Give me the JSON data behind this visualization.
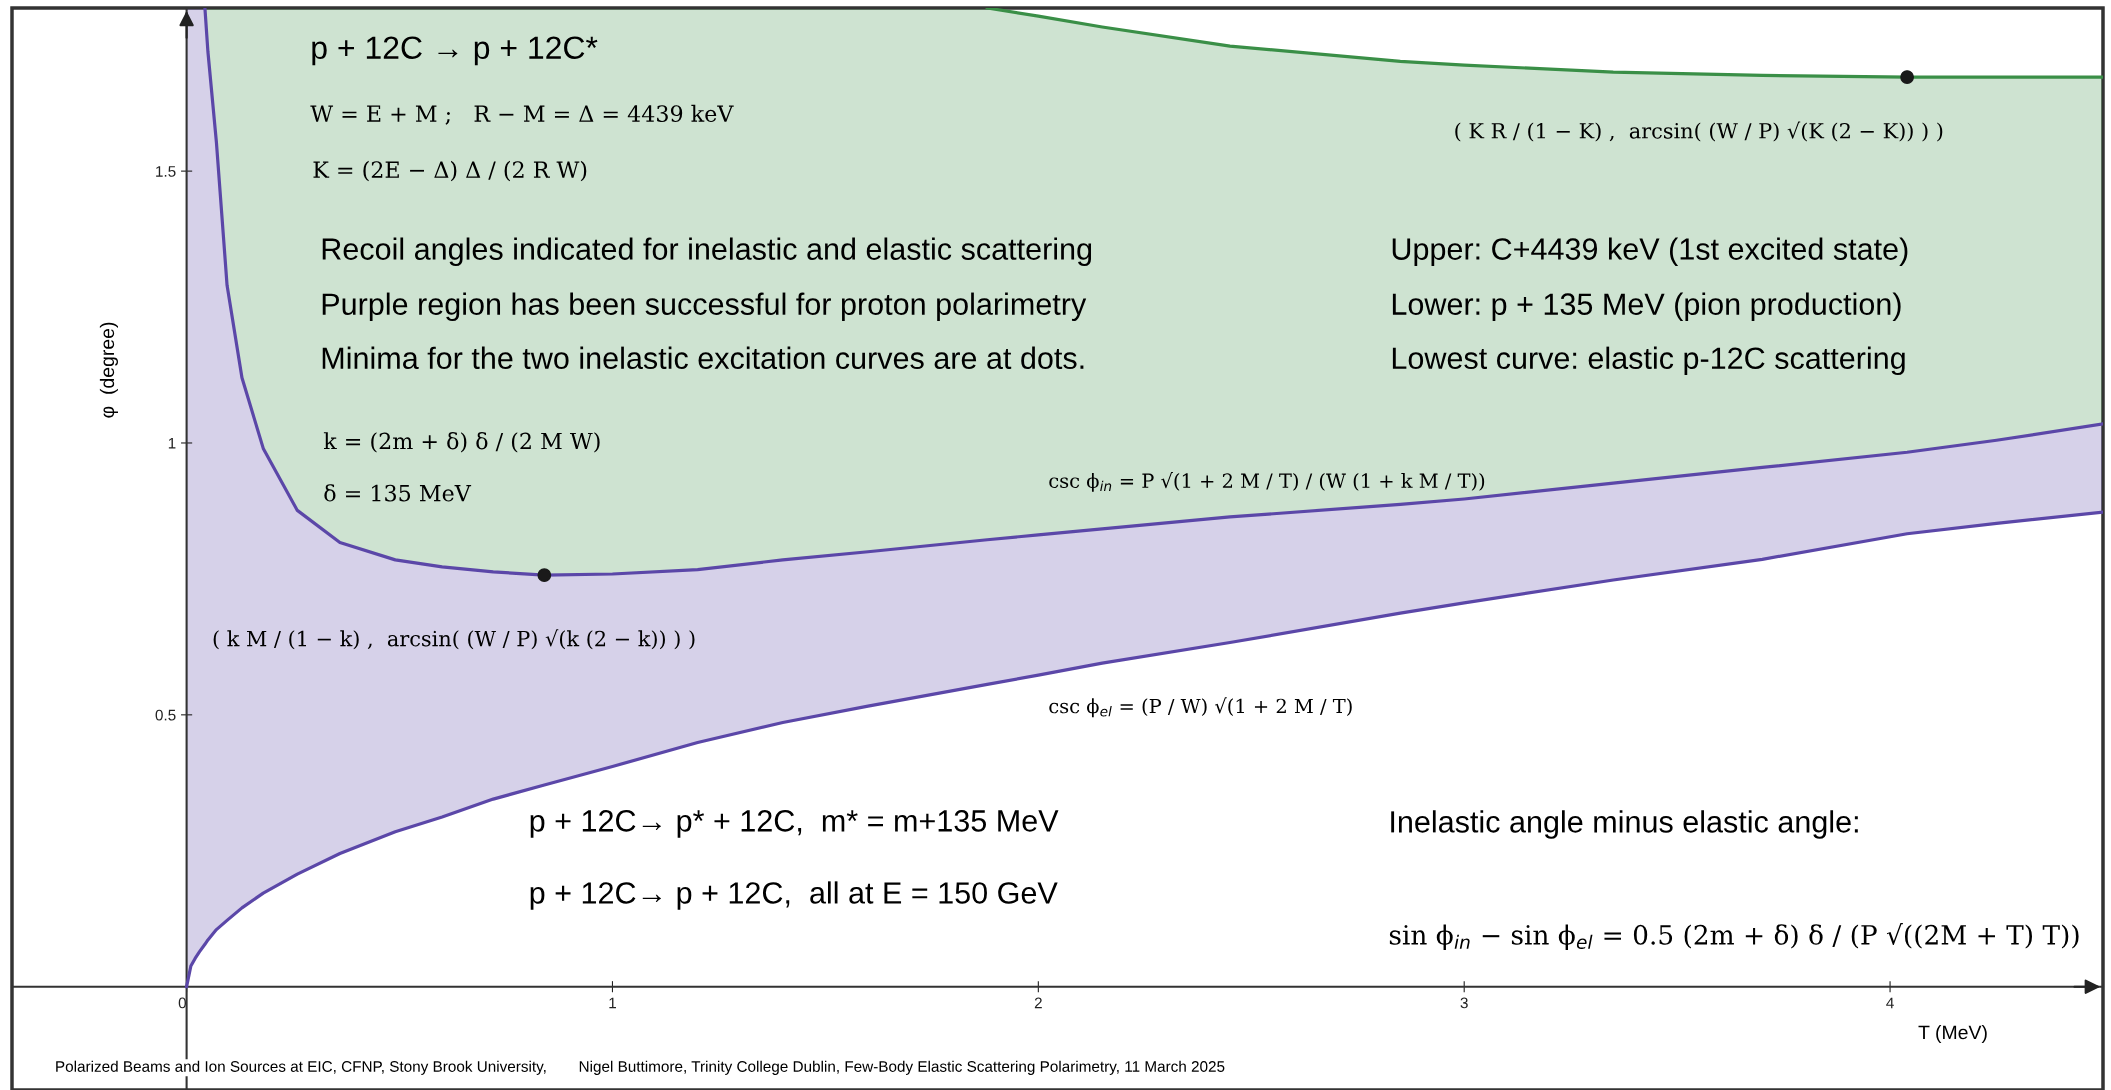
{
  "chart_data": {
    "type": "line",
    "xlabel": "T (MeV)",
    "ylabel": "φ  (degree)",
    "x": [
      0,
      0.01,
      0.02,
      0.03,
      0.043,
      0.05,
      0.07,
      0.095,
      0.13,
      0.18,
      0.26,
      0.36,
      0.49,
      0.6,
      0.72,
      0.84,
      1.0,
      1.2,
      1.4,
      1.6,
      1.88,
      2.0,
      2.15,
      2.45,
      2.85,
      3.0,
      3.35,
      3.7,
      4.04,
      4.25,
      4.5
    ],
    "series": [
      {
        "color": "#5b47a8",
        "values": [
          0,
          0.038,
          0.052,
          0.064,
          0.078,
          0.086,
          0.105,
          0.122,
          0.145,
          0.172,
          0.207,
          0.245,
          0.285,
          0.312,
          0.345,
          0.371,
          0.405,
          0.449,
          0.486,
          0.516,
          0.556,
          0.573,
          0.595,
          0.633,
          0.687,
          0.706,
          0.748,
          0.786,
          0.833,
          0.852,
          0.873
        ]
      },
      {
        "type": "line",
        "color": "#5b47a8",
        "values": [
          null,
          null,
          null,
          null,
          1.8,
          1.72,
          1.553,
          1.29,
          1.12,
          0.99,
          0.876,
          0.817,
          0.785,
          0.772,
          0.763,
          0.757,
          0.759,
          0.767,
          0.785,
          0.8,
          0.822,
          0.831,
          0.842,
          0.864,
          0.887,
          0.897,
          0.926,
          0.955,
          0.983,
          1.005,
          1.035
        ]
      },
      {
        "type": "line",
        "color": "#3a8f47",
        "values": [
          null,
          null,
          null,
          null,
          null,
          null,
          null,
          null,
          null,
          null,
          null,
          null,
          null,
          null,
          null,
          null,
          null,
          null,
          null,
          null,
          1.8,
          1.785,
          1.765,
          1.73,
          1.702,
          1.695,
          1.682,
          1.676,
          1.673,
          1.673,
          1.673
        ]
      },
      {
        "type": "scatter",
        "color": "#1a1a1a",
        "marker": "circle",
        "x": [
          0.84,
          4.04
        ],
        "values": [
          0.757,
          1.673
        ]
      }
    ],
    "xlim": [
      -0.41,
      4.5
    ],
    "ylim": [
      -0.19,
      1.8
    ],
    "xticks": [
      0,
      1,
      2,
      3,
      4
    ],
    "yticks": [
      0.5,
      1,
      1.5
    ],
    "annotations": [
      "p + 12C → p + 12C*",
      "W = E + M ;   R − M = Δ = 4439 keV",
      "K = (2E − Δ) Δ / (2 R W)",
      "Recoil angles indicated for inelastic and elastic scattering",
      "Purple region has been successful for proton polarimetry",
      "Minima for the two inelastic excitation curves are at dots.",
      "Upper: C+4439 keV (1st excited state)",
      "Lower: p + 135 MeV (pion production)",
      "Lowest curve: elastic p-12C scattering",
      "k = (2m + δ) δ / (2 M W)",
      "δ = 135 MeV",
      "csc ϕ$_{in}$ = P √(1 + 2 M / T) / (W (1 + k M / T))",
      "csc ϕ$_{el}$ = (P / W) √(1 + 2 M / T)",
      {
        "text": "( k M / (1 − k) ,  arcsin( (W / P) √(k (2 − k)) ) )",
        "x": 0.84,
        "y": 0.757
      },
      {
        "text": "( K R / (1 − K) ,  arcsin( (W / P) √(K (2 − K)) ) )",
        "x": 4.04,
        "y": 1.673
      },
      "p + 12C→ p* + 12C,  m* = m+135 MeV",
      "p + 12C→ p + 12C,  all at E = 150 GeV",
      "Inelastic angle minus elastic angle:",
      "sin ϕ$_{in}$ − sin ϕ$_{el}$ = 0.5 (2m + δ) δ / (P √((2M + T) T))",
      "Polarized Beams and Ion Sources at EIC, CFNP, Stony Brook University,",
      "Nigel Buttimore, Trinity College Dublin, Few-Body Elastic Scattering Polarimetry, 11 March 2025"
    ]
  }
}
